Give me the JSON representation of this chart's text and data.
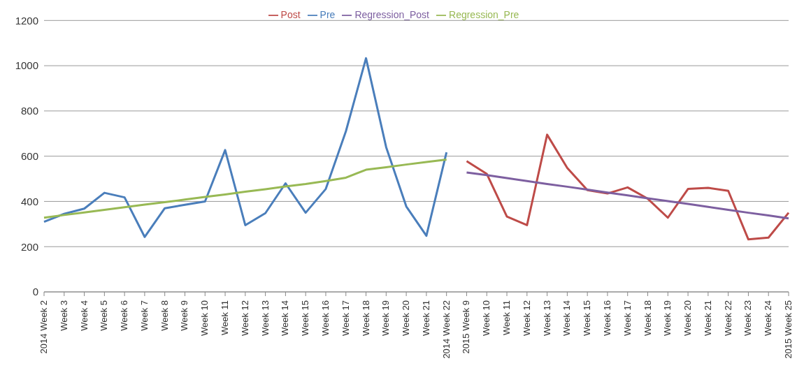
{
  "chart_data": {
    "type": "line",
    "categories": [
      "2014 Week 2",
      "Week 3",
      "Week 4",
      "Week 5",
      "Week 6",
      "Week 7",
      "Week 8",
      "Week 9",
      "Week 10",
      "Week 11",
      "Week 12",
      "Week 13",
      "Week 14",
      "Week 15",
      "Week 16",
      "Week 17",
      "Week 18",
      "Week 19",
      "Week 20",
      "Week 21",
      "2014 Week 22",
      "2015 Week 9",
      "Week 10",
      "Week 11",
      "Week 12",
      "Week 13",
      "Week 14",
      "Week 15",
      "Week 16",
      "Week 17",
      "Week 18",
      "Week 19",
      "Week 20",
      "Week 21",
      "Week 22",
      "Week 23",
      "Week 24",
      "2015 Week 25"
    ],
    "series": [
      {
        "name": "Pre",
        "color": "#4a7ebb",
        "values": [
          310,
          345,
          368,
          438,
          418,
          243,
          370,
          385,
          400,
          627,
          295,
          348,
          480,
          350,
          455,
          710,
          1033,
          640,
          378,
          248,
          617,
          null,
          null,
          null,
          null,
          null,
          null,
          null,
          null,
          null,
          null,
          null,
          null,
          null,
          null,
          null,
          null,
          null
        ]
      },
      {
        "name": "Post",
        "color": "#be4b48",
        "values": [
          null,
          null,
          null,
          null,
          null,
          null,
          null,
          null,
          null,
          null,
          null,
          null,
          null,
          null,
          null,
          null,
          null,
          null,
          null,
          null,
          null,
          578,
          522,
          333,
          295,
          695,
          548,
          450,
          435,
          462,
          412,
          328,
          455,
          460,
          447,
          232,
          240,
          350
        ]
      },
      {
        "name": "Regression_Pre",
        "color": "#98b954",
        "values": [
          328,
          340,
          351,
          363,
          374,
          386,
          397,
          408,
          420,
          431,
          443,
          454,
          466,
          477,
          490,
          505,
          540,
          551,
          563,
          574,
          585,
          null,
          null,
          null,
          null,
          null,
          null,
          null,
          null,
          null,
          null,
          null,
          null,
          null,
          null,
          null,
          null,
          null
        ]
      },
      {
        "name": "Regression_Post",
        "color": "#7d5fa0",
        "values": [
          null,
          null,
          null,
          null,
          null,
          null,
          null,
          null,
          null,
          null,
          null,
          null,
          null,
          null,
          null,
          null,
          null,
          null,
          null,
          null,
          null,
          528,
          516,
          503,
          490,
          477,
          465,
          452,
          439,
          427,
          414,
          401,
          389,
          376,
          363,
          350,
          338,
          325
        ]
      }
    ],
    "ylim": [
      0,
      1200
    ],
    "yticks": [
      0,
      200,
      400,
      600,
      800,
      1000,
      1200
    ],
    "grid": "y",
    "legend": "top",
    "marker": "none",
    "line_style": "solid"
  }
}
